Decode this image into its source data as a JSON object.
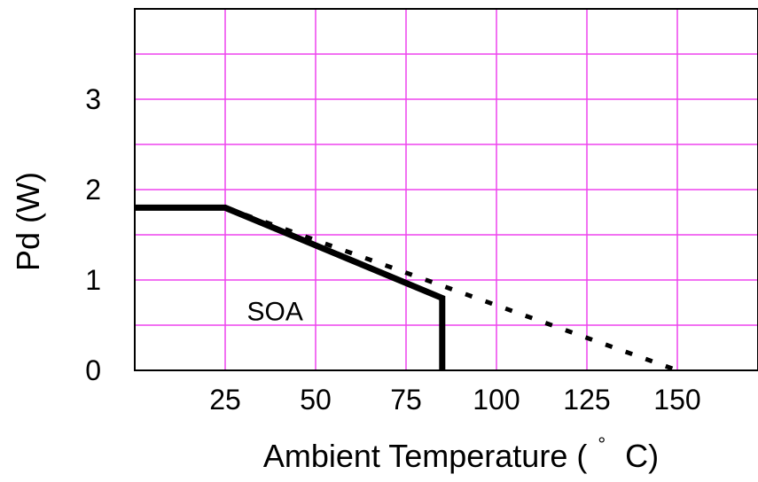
{
  "chart_data": {
    "type": "line",
    "title": "",
    "xlabel": "Ambient Temperature (°C)",
    "xlabel_parts": {
      "before": "Ambient Temperature (",
      "degree": "°",
      "after": "C)"
    },
    "ylabel": "Pd (W)",
    "xlim": [
      0,
      175
    ],
    "ylim": [
      0,
      4
    ],
    "x_ticks": [
      25,
      50,
      75,
      100,
      125,
      150
    ],
    "x_tick_labels": [
      "25",
      "50",
      "75",
      "100",
      "125",
      "150"
    ],
    "y_ticks": [
      0,
      1,
      2,
      3
    ],
    "y_tick_labels": [
      "0",
      "1",
      "2",
      "3"
    ],
    "x_grid": [
      25,
      50,
      75,
      100,
      125,
      150
    ],
    "y_grid": [
      0.5,
      1,
      1.5,
      2,
      2.5,
      3,
      3.5
    ],
    "grid": true,
    "grid_color": "#ee44ee",
    "series": [
      {
        "style": "solid",
        "color": "#000000",
        "x": [
          0,
          25,
          85,
          85
        ],
        "y": [
          1.8,
          1.8,
          0.8,
          0
        ]
      },
      {
        "style": "dotted",
        "color": "#000000",
        "x": [
          25,
          150
        ],
        "y": [
          1.8,
          0
        ]
      }
    ],
    "annotations": [
      {
        "text": "SOA",
        "x": 40,
        "y": 0.65
      }
    ]
  }
}
